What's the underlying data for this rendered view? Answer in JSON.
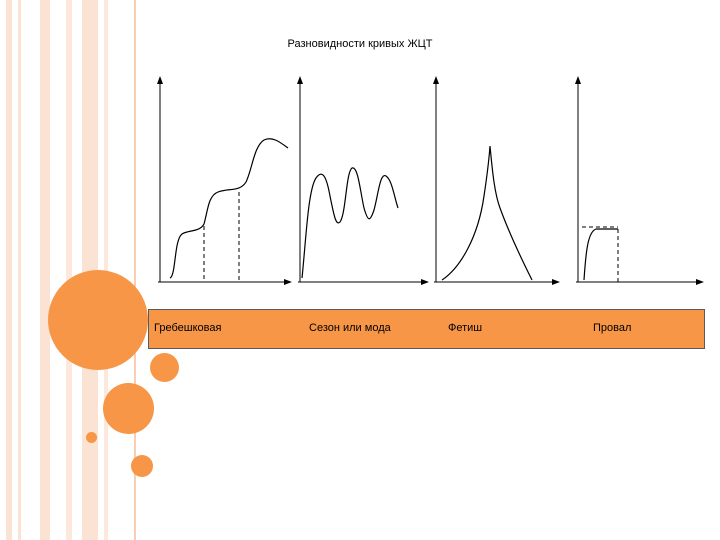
{
  "title": "Разновидности кривых ЖЦТ",
  "colors": {
    "accent": "#f79646",
    "stripe_light": "#fbe3d4",
    "stripe_mid": "#f8cfb5",
    "band_border": "#5a5a5a"
  },
  "curve_types": [
    {
      "id": "grebeshkovaya",
      "label": "Гребешковая"
    },
    {
      "id": "sezon",
      "label": "Сезон или мода"
    },
    {
      "id": "fetish",
      "label": "Фетиш"
    },
    {
      "id": "proval",
      "label": "Провал"
    }
  ]
}
